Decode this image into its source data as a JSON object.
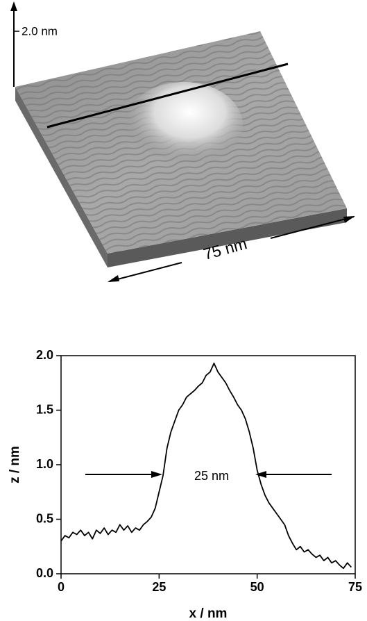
{
  "surface": {
    "height_label": "2.0 nm",
    "width_label": "75 nm"
  },
  "chart_data": {
    "type": "line",
    "xlabel": "x / nm",
    "ylabel": "z / nm",
    "annotation": "25 nm",
    "color": "#000000",
    "x": [
      0,
      1,
      2,
      3,
      4,
      5,
      6,
      7,
      8,
      9,
      10,
      11,
      12,
      13,
      14,
      15,
      16,
      17,
      18,
      19,
      20,
      21,
      22,
      23,
      24,
      25,
      26,
      27,
      28,
      29,
      30,
      31,
      32,
      33,
      34,
      35,
      36,
      37,
      38,
      39,
      40,
      41,
      42,
      43,
      44,
      45,
      46,
      47,
      48,
      49,
      50,
      51,
      52,
      53,
      54,
      55,
      56,
      57,
      58,
      59,
      60,
      61,
      62,
      63,
      64,
      65,
      66,
      67,
      68,
      69,
      70,
      71,
      72,
      73,
      74
    ],
    "values": [
      0.3,
      0.35,
      0.33,
      0.38,
      0.36,
      0.4,
      0.35,
      0.38,
      0.32,
      0.4,
      0.37,
      0.42,
      0.36,
      0.4,
      0.38,
      0.45,
      0.4,
      0.44,
      0.38,
      0.42,
      0.4,
      0.45,
      0.48,
      0.52,
      0.6,
      0.75,
      0.9,
      1.15,
      1.3,
      1.4,
      1.5,
      1.55,
      1.62,
      1.65,
      1.68,
      1.72,
      1.75,
      1.82,
      1.85,
      1.93,
      1.85,
      1.8,
      1.75,
      1.68,
      1.62,
      1.55,
      1.5,
      1.42,
      1.3,
      1.15,
      0.95,
      0.82,
      0.72,
      0.65,
      0.6,
      0.55,
      0.5,
      0.45,
      0.35,
      0.28,
      0.22,
      0.25,
      0.2,
      0.22,
      0.18,
      0.15,
      0.17,
      0.12,
      0.15,
      0.1,
      0.12,
      0.08,
      0.05,
      0.1,
      0.06
    ],
    "xlim": [
      0,
      75
    ],
    "xticks": [
      0,
      25,
      50,
      75
    ],
    "ylim": [
      0,
      2.0
    ],
    "yticks": [
      {
        "value": 0,
        "label": "0.0"
      },
      {
        "value": 0.5,
        "label": "0.5"
      },
      {
        "value": 1.0,
        "label": "1.0"
      },
      {
        "value": 1.5,
        "label": "1.5"
      },
      {
        "value": 2.0,
        "label": "2.0"
      }
    ]
  }
}
